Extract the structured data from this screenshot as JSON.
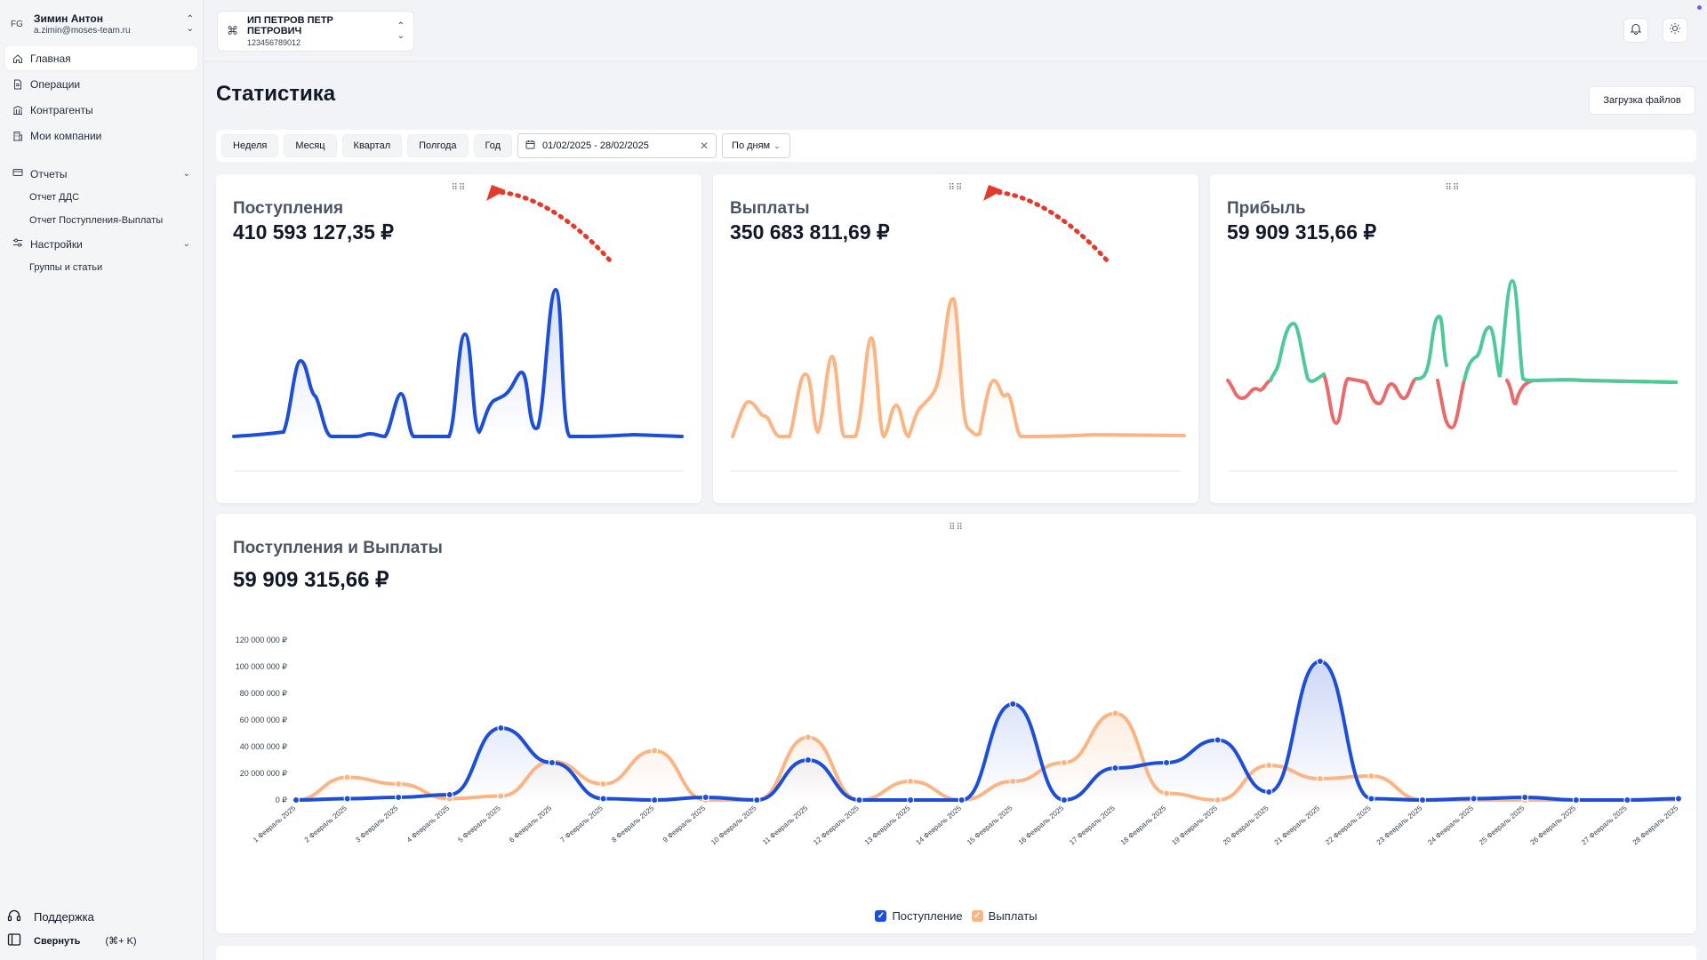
{
  "user": {
    "initials": "FG",
    "name": "Зимин Антон",
    "email": "a.zimin@moses-team.ru"
  },
  "sidebar": {
    "items": [
      {
        "label": "Главная",
        "icon": "home-icon"
      },
      {
        "label": "Операции",
        "icon": "document-icon"
      },
      {
        "label": "Контрагенты",
        "icon": "bank-icon"
      },
      {
        "label": "Мои компании",
        "icon": "building-icon"
      }
    ],
    "reports": {
      "label": "Отчеты",
      "items": [
        "Отчет ДДС",
        "Отчет Поступления-Выплаты"
      ]
    },
    "settings": {
      "label": "Настройки",
      "items": [
        "Группы и статьи"
      ]
    },
    "support": "Поддержка",
    "collapse": "Свернуть",
    "collapse_shortcut": "(⌘+ K)"
  },
  "company": {
    "name": "ИП ПЕТРОВ ПЕТР ПЕТРОВИЧ",
    "inn": "123456789012"
  },
  "page": {
    "title": "Статистика",
    "upload_label": "Загрузка файлов"
  },
  "filters": {
    "periods": [
      "Неделя",
      "Месяц",
      "Квартал",
      "Полгода",
      "Год"
    ],
    "date_range": "01/02/2025 - 28/02/2025",
    "grouping": "По дням"
  },
  "cards": [
    {
      "title": "Поступления",
      "value": "410 593 127,35 ₽",
      "color": "#1d4ed8"
    },
    {
      "title": "Выплаты",
      "value": "350 683 811,69 ₽",
      "color": "#fbb584"
    },
    {
      "title": "Прибыль",
      "value": "59 909 315,66 ₽",
      "color_pos": "#4ec99a",
      "color_neg": "#e86a6a"
    }
  ],
  "big_card": {
    "title": "Поступления и Выплаты",
    "value": "59 909 315,66 ₽"
  },
  "colors": {
    "income": "#1d4ed8",
    "payout": "#fbb584",
    "arrow": "#e23b2e"
  },
  "chart_data": {
    "type": "line",
    "title": "Поступления и Выплаты",
    "ylim": [
      0,
      120000000
    ],
    "yticks": [
      0,
      20000000,
      40000000,
      60000000,
      80000000,
      100000000,
      120000000
    ],
    "ytick_labels": [
      "0 ₽",
      "20 000 000 ₽",
      "40 000 000 ₽",
      "60 000 000 ₽",
      "80 000 000 ₽",
      "100 000 000 ₽",
      "120 000 000 ₽"
    ],
    "categories": [
      "1 Февраль 2025",
      "2 Февраль 2025",
      "3 Февраль 2025",
      "4 Февраль 2025",
      "5 Февраль 2025",
      "6 Февраль 2025",
      "7 Февраль 2025",
      "8 Февраль 2025",
      "9 Февраль 2025",
      "10 Февраль 2025",
      "11 Февраль 2025",
      "12 Февраль 2025",
      "13 Февраль 2025",
      "14 Февраль 2025",
      "15 Февраль 2025",
      "16 Февраль 2025",
      "17 Февраль 2025",
      "18 Февраль 2025",
      "19 Февраль 2025",
      "20 Февраль 2025",
      "21 Февраль 2025",
      "22 Февраль 2025",
      "23 Февраль 2025",
      "24 Февраль 2025",
      "25 Февраль 2025",
      "26 Февраль 2025",
      "27 Февраль 2025",
      "28 Февраль 2025"
    ],
    "series": [
      {
        "name": "Поступление",
        "values": [
          0,
          1000000,
          2000000,
          4000000,
          54000000,
          28000000,
          1000000,
          0,
          2000000,
          0,
          30000000,
          0,
          0,
          0,
          72000000,
          0,
          24000000,
          28000000,
          45000000,
          6000000,
          104000000,
          1000000,
          0,
          1000000,
          2000000,
          0,
          0,
          1000000
        ]
      },
      {
        "name": "Выплаты",
        "values": [
          0,
          17000000,
          12000000,
          1000000,
          3000000,
          29000000,
          12000000,
          37000000,
          0,
          0,
          47000000,
          0,
          14000000,
          0,
          14000000,
          28000000,
          65000000,
          5000000,
          0,
          26000000,
          16000000,
          18000000,
          0,
          0,
          0,
          0,
          0,
          0
        ]
      }
    ],
    "legend_position": "bottom",
    "grid": false
  }
}
